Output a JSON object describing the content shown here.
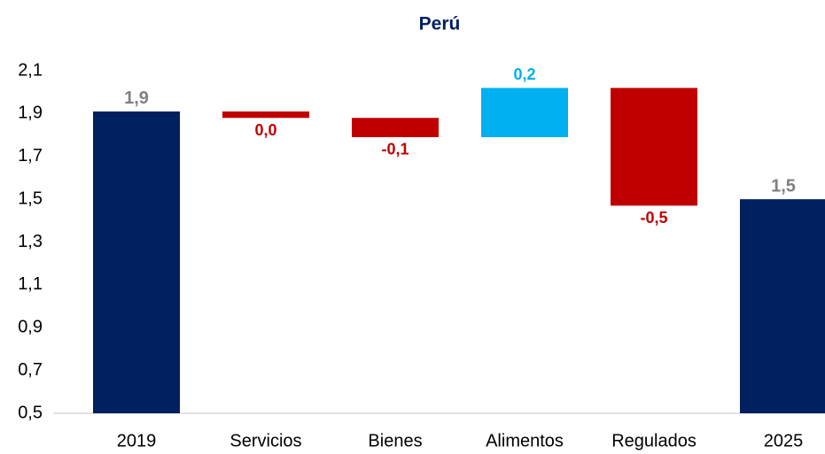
{
  "chart_data": {
    "type": "waterfall",
    "title": "Perú",
    "categories": [
      "2019",
      "Servicios",
      "Bienes",
      "Alimentos",
      "Regulados",
      "2025"
    ],
    "values": [
      1.91,
      -0.03,
      -0.09,
      0.23,
      -0.55,
      1.5
    ],
    "value_labels": [
      "1,9",
      "0,0",
      "-0,1",
      "0,2",
      "-0,5",
      "1,5"
    ],
    "measures": [
      "total",
      "relative",
      "relative",
      "relative",
      "relative",
      "total"
    ],
    "colors": {
      "total": "#002060",
      "increase": "#00b0f0",
      "decrease": "#c00000"
    },
    "ylim": [
      0.5,
      2.1
    ],
    "yticks": [
      {
        "value": 0.5,
        "label": "0,5"
      },
      {
        "value": 0.7,
        "label": "0,7"
      },
      {
        "value": 0.9,
        "label": "0,9"
      },
      {
        "value": 1.1,
        "label": "1,1"
      },
      {
        "value": 1.3,
        "label": "1,3"
      },
      {
        "value": 1.5,
        "label": "1,5"
      },
      {
        "value": 1.7,
        "label": "1,7"
      },
      {
        "value": 1.9,
        "label": "1,9"
      },
      {
        "value": 2.1,
        "label": "2,1"
      }
    ],
    "grid": false
  }
}
